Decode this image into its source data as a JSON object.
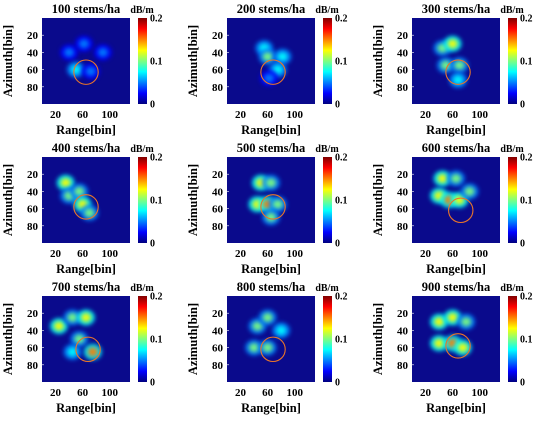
{
  "colors": {
    "background": "#0a0a8c",
    "circle": "#e8742a",
    "colormap": [
      "#00007f",
      "#0000ff",
      "#007fff",
      "#00ffff",
      "#7fff7f",
      "#ffff00",
      "#ff7f00",
      "#ff0000",
      "#7f0000"
    ]
  },
  "chart_data": [
    {
      "type": "heatmap",
      "title": "100 stems/ha",
      "xlabel": "Range[bin]",
      "ylabel": "Azimuth[bin]",
      "x_ticks": [
        "20",
        "60",
        "100"
      ],
      "y_ticks": [
        "20",
        "40",
        "60",
        "80"
      ],
      "xlim": [
        0,
        130
      ],
      "ylim": [
        0,
        100
      ],
      "colorbar": {
        "unit": "dB/m",
        "ticks": [
          "0",
          "0.1",
          "0.2"
        ],
        "range": [
          0,
          0.2
        ]
      },
      "circle": {
        "center_range": 65,
        "center_azimuth": 63,
        "radius": 18
      },
      "blobs": [
        {
          "range": 40,
          "azimuth": 40,
          "value": 0.06
        },
        {
          "range": 62,
          "azimuth": 30,
          "value": 0.05
        },
        {
          "range": 90,
          "azimuth": 40,
          "value": 0.05
        },
        {
          "range": 50,
          "azimuth": 60,
          "value": 0.07
        },
        {
          "range": 72,
          "azimuth": 62,
          "value": 0.06
        }
      ]
    },
    {
      "type": "heatmap",
      "title": "200 stems/ha",
      "xlabel": "Range[bin]",
      "ylabel": "Azimuth[bin]",
      "x_ticks": [
        "20",
        "60",
        "100"
      ],
      "y_ticks": [
        "20",
        "40",
        "60",
        "80"
      ],
      "xlim": [
        0,
        130
      ],
      "ylim": [
        0,
        100
      ],
      "colorbar": {
        "unit": "dB/m",
        "ticks": [
          "0",
          "0.1",
          "0.2"
        ],
        "range": [
          0,
          0.2
        ]
      },
      "circle": {
        "center_range": 68,
        "center_azimuth": 63,
        "radius": 18
      },
      "blobs": [
        {
          "range": 55,
          "azimuth": 35,
          "value": 0.08
        },
        {
          "range": 60,
          "azimuth": 45,
          "value": 0.1
        },
        {
          "range": 82,
          "azimuth": 45,
          "value": 0.08
        },
        {
          "range": 75,
          "azimuth": 60,
          "value": 0.07
        },
        {
          "range": 62,
          "azimuth": 70,
          "value": 0.06
        }
      ]
    },
    {
      "type": "heatmap",
      "title": "300 stems/ha",
      "xlabel": "Range[bin]",
      "ylabel": "Azimuth[bin]",
      "x_ticks": [
        "20",
        "60",
        "100"
      ],
      "y_ticks": [
        "20",
        "40",
        "60",
        "80"
      ],
      "xlim": [
        0,
        130
      ],
      "ylim": [
        0,
        100
      ],
      "colorbar": {
        "unit": "dB/m",
        "ticks": [
          "0",
          "0.1",
          "0.2"
        ],
        "range": [
          0,
          0.2
        ]
      },
      "circle": {
        "center_range": 68,
        "center_azimuth": 63,
        "radius": 18
      },
      "blobs": [
        {
          "range": 45,
          "azimuth": 35,
          "value": 0.1
        },
        {
          "range": 60,
          "azimuth": 30,
          "value": 0.12
        },
        {
          "range": 50,
          "azimuth": 55,
          "value": 0.09
        },
        {
          "range": 70,
          "azimuth": 55,
          "value": 0.11
        },
        {
          "range": 68,
          "azimuth": 72,
          "value": 0.08
        }
      ]
    },
    {
      "type": "heatmap",
      "title": "400 stems/ha",
      "xlabel": "Range[bin]",
      "ylabel": "Azimuth[bin]",
      "x_ticks": [
        "20",
        "60",
        "100"
      ],
      "y_ticks": [
        "20",
        "40",
        "60",
        "80"
      ],
      "xlim": [
        0,
        130
      ],
      "ylim": [
        0,
        100
      ],
      "colorbar": {
        "unit": "dB/m",
        "ticks": [
          "0",
          "0.1",
          "0.2"
        ],
        "range": [
          0,
          0.2
        ]
      },
      "circle": {
        "center_range": 65,
        "center_azimuth": 58,
        "radius": 18
      },
      "blobs": [
        {
          "range": 35,
          "azimuth": 30,
          "value": 0.12
        },
        {
          "range": 40,
          "azimuth": 45,
          "value": 0.1
        },
        {
          "range": 55,
          "azimuth": 40,
          "value": 0.1
        },
        {
          "range": 60,
          "azimuth": 55,
          "value": 0.13
        },
        {
          "range": 70,
          "azimuth": 65,
          "value": 0.09
        }
      ]
    },
    {
      "type": "heatmap",
      "title": "500 stems/ha",
      "xlabel": "Range[bin]",
      "ylabel": "Azimuth[bin]",
      "x_ticks": [
        "20",
        "60",
        "100"
      ],
      "y_ticks": [
        "20",
        "40",
        "60",
        "80"
      ],
      "xlim": [
        0,
        130
      ],
      "ylim": [
        0,
        100
      ],
      "colorbar": {
        "unit": "dB/m",
        "ticks": [
          "0",
          "0.1",
          "0.2"
        ],
        "range": [
          0,
          0.2
        ]
      },
      "circle": {
        "center_range": 68,
        "center_azimuth": 58,
        "radius": 18
      },
      "blobs": [
        {
          "range": 50,
          "azimuth": 30,
          "value": 0.12
        },
        {
          "range": 65,
          "azimuth": 30,
          "value": 0.11
        },
        {
          "range": 45,
          "azimuth": 55,
          "value": 0.13
        },
        {
          "range": 60,
          "azimuth": 55,
          "value": 0.14
        },
        {
          "range": 75,
          "azimuth": 55,
          "value": 0.1
        },
        {
          "range": 65,
          "azimuth": 70,
          "value": 0.09
        }
      ]
    },
    {
      "type": "heatmap",
      "title": "600 stems/ha",
      "xlabel": "Range[bin]",
      "ylabel": "Azimuth[bin]",
      "x_ticks": [
        "20",
        "60",
        "100"
      ],
      "y_ticks": [
        "20",
        "40",
        "60",
        "80"
      ],
      "xlim": [
        0,
        130
      ],
      "ylim": [
        0,
        100
      ],
      "colorbar": {
        "unit": "dB/m",
        "ticks": [
          "0",
          "0.1",
          "0.2"
        ],
        "range": [
          0,
          0.2
        ]
      },
      "circle": {
        "center_range": 72,
        "center_azimuth": 62,
        "radius": 18
      },
      "blobs": [
        {
          "range": 45,
          "azimuth": 25,
          "value": 0.12
        },
        {
          "range": 65,
          "azimuth": 25,
          "value": 0.11
        },
        {
          "range": 40,
          "azimuth": 45,
          "value": 0.12
        },
        {
          "range": 55,
          "azimuth": 50,
          "value": 0.14
        },
        {
          "range": 70,
          "azimuth": 50,
          "value": 0.13
        },
        {
          "range": 85,
          "azimuth": 40,
          "value": 0.1
        }
      ]
    },
    {
      "type": "heatmap",
      "title": "700 stems/ha",
      "xlabel": "Range[bin]",
      "ylabel": "Azimuth[bin]",
      "x_ticks": [
        "20",
        "60",
        "100"
      ],
      "y_ticks": [
        "20",
        "40",
        "60",
        "80"
      ],
      "xlim": [
        0,
        130
      ],
      "ylim": [
        0,
        100
      ],
      "colorbar": {
        "unit": "dB/m",
        "ticks": [
          "0",
          "0.1",
          "0.2"
        ],
        "range": [
          0,
          0.2
        ]
      },
      "circle": {
        "center_range": 68,
        "center_azimuth": 62,
        "radius": 18
      },
      "blobs": [
        {
          "range": 25,
          "azimuth": 35,
          "value": 0.13
        },
        {
          "range": 45,
          "azimuth": 25,
          "value": 0.11
        },
        {
          "range": 65,
          "azimuth": 25,
          "value": 0.12
        },
        {
          "range": 55,
          "azimuth": 50,
          "value": 0.1
        },
        {
          "range": 75,
          "azimuth": 65,
          "value": 0.15
        },
        {
          "range": 45,
          "azimuth": 65,
          "value": 0.08
        }
      ]
    },
    {
      "type": "heatmap",
      "title": "800 stems/ha",
      "xlabel": "Range[bin]",
      "ylabel": "Azimuth[bin]",
      "x_ticks": [
        "20",
        "60",
        "100"
      ],
      "y_ticks": [
        "20",
        "40",
        "60",
        "80"
      ],
      "xlim": [
        0,
        130
      ],
      "ylim": [
        0,
        100
      ],
      "colorbar": {
        "unit": "dB/m",
        "ticks": [
          "0",
          "0.1",
          "0.2"
        ],
        "range": [
          0,
          0.2
        ]
      },
      "circle": {
        "center_range": 68,
        "center_azimuth": 62,
        "radius": 18
      },
      "blobs": [
        {
          "range": 45,
          "azimuth": 35,
          "value": 0.09
        },
        {
          "range": 60,
          "azimuth": 25,
          "value": 0.1
        },
        {
          "range": 40,
          "azimuth": 60,
          "value": 0.1
        },
        {
          "range": 60,
          "azimuth": 60,
          "value": 0.11
        },
        {
          "range": 80,
          "azimuth": 40,
          "value": 0.08
        }
      ]
    },
    {
      "type": "heatmap",
      "title": "900 stems/ha",
      "xlabel": "Range[bin]",
      "ylabel": "Azimuth[bin]",
      "x_ticks": [
        "20",
        "60",
        "100"
      ],
      "y_ticks": [
        "20",
        "40",
        "60",
        "80"
      ],
      "xlim": [
        0,
        130
      ],
      "ylim": [
        0,
        100
      ],
      "colorbar": {
        "unit": "dB/m",
        "ticks": [
          "0",
          "0.1",
          "0.2"
        ],
        "range": [
          0,
          0.2
        ]
      },
      "circle": {
        "center_range": 68,
        "center_azimuth": 58,
        "radius": 18
      },
      "blobs": [
        {
          "range": 40,
          "azimuth": 30,
          "value": 0.12
        },
        {
          "range": 60,
          "azimuth": 25,
          "value": 0.13
        },
        {
          "range": 80,
          "azimuth": 30,
          "value": 0.11
        },
        {
          "range": 40,
          "azimuth": 55,
          "value": 0.12
        },
        {
          "range": 60,
          "azimuth": 55,
          "value": 0.14
        },
        {
          "range": 75,
          "azimuth": 60,
          "value": 0.12
        }
      ]
    }
  ]
}
